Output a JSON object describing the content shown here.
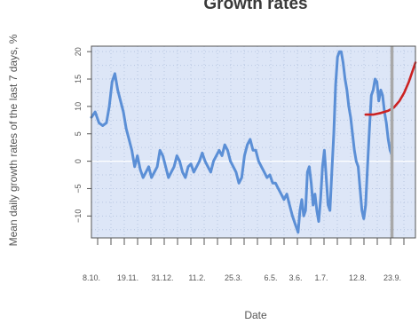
{
  "chart_data": {
    "type": "line",
    "title": "Growth rates",
    "xlabel": "Date",
    "ylabel": "Mean daily growth rates of the last 7 days, %",
    "x_tick_labels": [
      "8.10.",
      "19.11.",
      "31.12.",
      "11.2.",
      "25.3.",
      "6.5.",
      "3.6.",
      "1.7.",
      "12.8.",
      "23.9."
    ],
    "y_ticks": [
      -10,
      -5,
      0,
      5,
      10,
      15,
      20
    ],
    "ylim": [
      -14,
      21
    ],
    "grid": "dotted",
    "zero_line": true,
    "colors": {
      "panel": "#dde6f7",
      "observed": "#5b8fd6",
      "projection": "#cc2222",
      "marker": "#a8a8a8",
      "frame": "#555555"
    },
    "series": [
      {
        "role": "observed",
        "color": "#5b8fd6",
        "points": [
          [
            0,
            8
          ],
          [
            4,
            9
          ],
          [
            8,
            7
          ],
          [
            12,
            6.5
          ],
          [
            16,
            7
          ],
          [
            19,
            10
          ],
          [
            22,
            14.5
          ],
          [
            25,
            16
          ],
          [
            28,
            13
          ],
          [
            31,
            11
          ],
          [
            34,
            9
          ],
          [
            37,
            6
          ],
          [
            40,
            4
          ],
          [
            43,
            2
          ],
          [
            46,
            -1
          ],
          [
            49,
            1
          ],
          [
            52,
            -1.5
          ],
          [
            55,
            -3
          ],
          [
            58,
            -2
          ],
          [
            61,
            -1
          ],
          [
            64,
            -3
          ],
          [
            67,
            -2
          ],
          [
            70,
            -1
          ],
          [
            73,
            2
          ],
          [
            76,
            1
          ],
          [
            79,
            -1
          ],
          [
            82,
            -3
          ],
          [
            85,
            -2
          ],
          [
            88,
            -1
          ],
          [
            91,
            1
          ],
          [
            94,
            0
          ],
          [
            97,
            -2
          ],
          [
            100,
            -3
          ],
          [
            103,
            -1
          ],
          [
            106,
            -0.5
          ],
          [
            109,
            -2
          ],
          [
            112,
            -1
          ],
          [
            115,
            0
          ],
          [
            118,
            1.5
          ],
          [
            121,
            0
          ],
          [
            124,
            -1
          ],
          [
            127,
            -2
          ],
          [
            130,
            0
          ],
          [
            133,
            1
          ],
          [
            136,
            2
          ],
          [
            139,
            1
          ],
          [
            142,
            3
          ],
          [
            145,
            2
          ],
          [
            148,
            0
          ],
          [
            151,
            -1
          ],
          [
            154,
            -2
          ],
          [
            157,
            -4
          ],
          [
            160,
            -3
          ],
          [
            163,
            1
          ],
          [
            166,
            3
          ],
          [
            169,
            4
          ],
          [
            172,
            2
          ],
          [
            175,
            2
          ],
          [
            178,
            0
          ],
          [
            181,
            -1
          ],
          [
            184,
            -2
          ],
          [
            187,
            -3
          ],
          [
            190,
            -2.5
          ],
          [
            193,
            -4
          ],
          [
            196,
            -4
          ],
          [
            199,
            -5
          ],
          [
            202,
            -6
          ],
          [
            205,
            -7
          ],
          [
            208,
            -6
          ],
          [
            211,
            -8
          ],
          [
            214,
            -10
          ],
          [
            217,
            -11.5
          ],
          [
            220,
            -13
          ],
          [
            222,
            -9
          ],
          [
            224,
            -7
          ],
          [
            226,
            -10
          ],
          [
            228,
            -9
          ],
          [
            230,
            -2
          ],
          [
            232,
            -1
          ],
          [
            234,
            -4
          ],
          [
            236,
            -8
          ],
          [
            238,
            -6
          ],
          [
            240,
            -9
          ],
          [
            242,
            -11
          ],
          [
            244,
            -7
          ],
          [
            246,
            -1
          ],
          [
            248,
            2
          ],
          [
            250,
            -3
          ],
          [
            252,
            -8
          ],
          [
            254,
            -9
          ],
          [
            256,
            -2
          ],
          [
            258,
            5
          ],
          [
            260,
            14
          ],
          [
            262,
            19
          ],
          [
            264,
            20
          ],
          [
            266,
            20
          ],
          [
            268,
            18
          ],
          [
            270,
            15
          ],
          [
            272,
            13
          ],
          [
            274,
            10
          ],
          [
            276,
            8
          ],
          [
            278,
            5
          ],
          [
            280,
            2
          ],
          [
            282,
            0
          ],
          [
            284,
            -1
          ],
          [
            286,
            -5
          ],
          [
            288,
            -9
          ],
          [
            290,
            -10.5
          ],
          [
            292,
            -8
          ],
          [
            294,
            -1
          ],
          [
            296,
            6
          ],
          [
            298,
            12
          ],
          [
            300,
            13
          ],
          [
            302,
            15
          ],
          [
            304,
            14.5
          ],
          [
            306,
            11
          ],
          [
            308,
            13
          ],
          [
            310,
            12
          ],
          [
            312,
            9
          ],
          [
            314,
            7
          ],
          [
            316,
            4
          ],
          [
            318,
            2
          ],
          [
            320,
            1
          ]
        ]
      },
      {
        "role": "projection",
        "color": "#cc2222",
        "points": [
          [
            292,
            8.5
          ],
          [
            300,
            8.5
          ],
          [
            308,
            8.8
          ],
          [
            316,
            9.2
          ],
          [
            322,
            9.8
          ],
          [
            328,
            11
          ],
          [
            333,
            12.5
          ],
          [
            338,
            14.5
          ],
          [
            342,
            16.5
          ],
          [
            345,
            18
          ]
        ]
      }
    ],
    "vertical_marker_x": 320
  }
}
